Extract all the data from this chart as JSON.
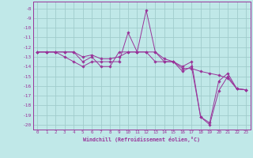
{
  "background_color": "#c0e8e8",
  "grid_color": "#a0cccc",
  "line_color": "#993399",
  "xlabel": "Windchill (Refroidissement éolien,°C)",
  "xlim": [
    -0.5,
    23.5
  ],
  "ylim": [
    -20.5,
    -7.3
  ],
  "yticks": [
    -8,
    -9,
    -10,
    -11,
    -12,
    -13,
    -14,
    -15,
    -16,
    -17,
    -18,
    -19,
    -20
  ],
  "xticks": [
    0,
    1,
    2,
    3,
    4,
    5,
    6,
    7,
    8,
    9,
    10,
    11,
    12,
    13,
    14,
    15,
    16,
    17,
    18,
    19,
    20,
    21,
    22,
    23
  ],
  "series": [
    [
      -12.5,
      -12.5,
      -12.5,
      -13.0,
      -13.5,
      -14.0,
      -13.5,
      -13.5,
      -13.5,
      -13.5,
      -10.5,
      -12.5,
      -8.2,
      -12.5,
      -13.5,
      -13.5,
      -14.0,
      -13.5,
      -19.2,
      -20.0,
      -16.5,
      -15.0,
      -16.3,
      -16.4
    ],
    [
      -12.5,
      -12.5,
      -12.5,
      -12.5,
      -12.5,
      -13.0,
      -12.8,
      -13.2,
      -13.2,
      -13.0,
      -12.5,
      -12.5,
      -12.5,
      -12.5,
      -13.2,
      -13.5,
      -14.2,
      -14.2,
      -14.5,
      -14.7,
      -14.9,
      -15.2,
      -16.3,
      -16.4
    ],
    [
      -12.5,
      -12.5,
      -12.5,
      -12.5,
      -12.5,
      -13.5,
      -13.0,
      -14.0,
      -14.0,
      -12.5,
      -12.5,
      -12.5,
      -12.5,
      -13.5,
      -13.5,
      -13.5,
      -14.5,
      -14.0,
      -19.2,
      -19.8,
      -15.5,
      -14.7,
      -16.3,
      -16.4
    ]
  ]
}
